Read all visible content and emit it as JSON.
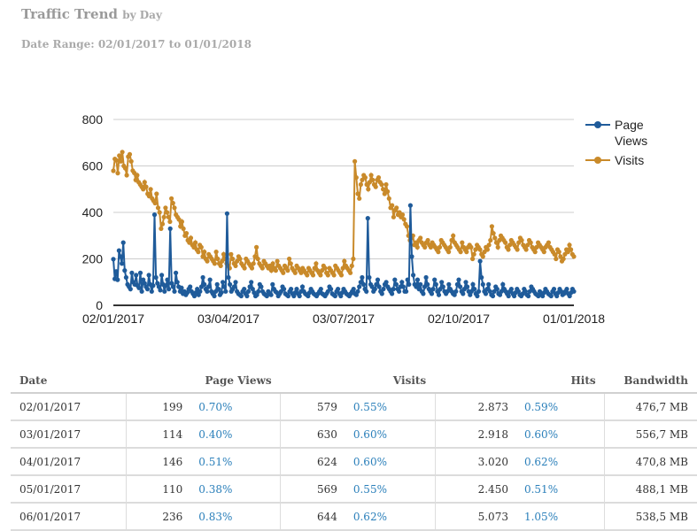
{
  "header": {
    "title": "Traffic Trend",
    "title_suffix": "by Day",
    "date_range": "Date Range: 02/01/2017 to 01/01/2018"
  },
  "chart_data": {
    "type": "line",
    "x_start": "02/01/2017",
    "x_ticks": [
      "02/01/2017",
      "03/04/2017",
      "03/07/2017",
      "02/10/2017",
      "01/01/2018"
    ],
    "ylim": [
      0,
      800
    ],
    "y_ticks": [
      0,
      200,
      400,
      600,
      800
    ],
    "grid": true,
    "legend_position": "right",
    "series": [
      {
        "name": "Page Views",
        "color": "#1f5b9a",
        "values": [
          199,
          114,
          146,
          110,
          236,
          210,
          180,
          270,
          150,
          120,
          90,
          80,
          70,
          140,
          100,
          90,
          130,
          85,
          75,
          140,
          60,
          110,
          95,
          80,
          70,
          130,
          90,
          60,
          85,
          390,
          120,
          95,
          80,
          65,
          130,
          90,
          60,
          85,
          110,
          70,
          330,
          95,
          80,
          60,
          140,
          100,
          80,
          60,
          75,
          50,
          60,
          45,
          55,
          70,
          80,
          60,
          50,
          40,
          55,
          70,
          45,
          60,
          80,
          120,
          90,
          70,
          60,
          80,
          110,
          60,
          50,
          40,
          60,
          90,
          70,
          45,
          55,
          100,
          80,
          60,
          395,
          120,
          90,
          60,
          70,
          80,
          100,
          60,
          50,
          45,
          40,
          60,
          70,
          50,
          40,
          60,
          80,
          100,
          70,
          55,
          40,
          45,
          60,
          90,
          80,
          60,
          50,
          45,
          40,
          60,
          50,
          45,
          90,
          70,
          60,
          55,
          40,
          50,
          60,
          80,
          70,
          50,
          45,
          40,
          60,
          70,
          50,
          40,
          55,
          70,
          50,
          40,
          60,
          80,
          60,
          50,
          45,
          40,
          55,
          70,
          60,
          50,
          45,
          40,
          50,
          60,
          70,
          50,
          45,
          40,
          50,
          60,
          80,
          70,
          50,
          45,
          40,
          60,
          70,
          50,
          40,
          55,
          70,
          60,
          50,
          45,
          40,
          50,
          60,
          70,
          50,
          45,
          60,
          80,
          100,
          120,
          90,
          70,
          60,
          375,
          120,
          90,
          80,
          60,
          70,
          90,
          110,
          80,
          60,
          50,
          70,
          90,
          100,
          80,
          70,
          60,
          50,
          70,
          110,
          90,
          70,
          60,
          80,
          100,
          80,
          60,
          60,
          110,
          90,
          430,
          210,
          130,
          90,
          80,
          110,
          70,
          90,
          60,
          50,
          80,
          120,
          90,
          70,
          60,
          50,
          70,
          110,
          90,
          60,
          45,
          70,
          100,
          80,
          60,
          50,
          60,
          90,
          70,
          60,
          50,
          45,
          60,
          90,
          110,
          80,
          60,
          50,
          70,
          100,
          80,
          60,
          45,
          60,
          90,
          70,
          50,
          40,
          60,
          190,
          120,
          90,
          60,
          50,
          70,
          90,
          60,
          45,
          40,
          60,
          80,
          70,
          50,
          45,
          60,
          90,
          70,
          60,
          50,
          40,
          60,
          70,
          50,
          40,
          55,
          70,
          60,
          45,
          40,
          50,
          70,
          60,
          45,
          40,
          60,
          80,
          70,
          60,
          50,
          45,
          40,
          60,
          50,
          40,
          55,
          70,
          60,
          50,
          45,
          40,
          60,
          70,
          50,
          40,
          55,
          70,
          60,
          45,
          50,
          60,
          70,
          50,
          40,
          55,
          70,
          60
        ]
      },
      {
        "name": "Visits",
        "color": "#c98a2a",
        "values": [
          579,
          630,
          624,
          569,
          644,
          620,
          660,
          600,
          590,
          560,
          640,
          650,
          620,
          580,
          570,
          540,
          560,
          530,
          520,
          510,
          500,
          530,
          510,
          480,
          470,
          500,
          460,
          450,
          440,
          480,
          420,
          400,
          330,
          350,
          380,
          420,
          400,
          380,
          360,
          460,
          440,
          420,
          390,
          380,
          370,
          340,
          360,
          330,
          300,
          310,
          280,
          270,
          290,
          260,
          250,
          270,
          240,
          230,
          260,
          250,
          210,
          230,
          200,
          190,
          220,
          210,
          200,
          190,
          180,
          230,
          200,
          180,
          170,
          190,
          220,
          200,
          180,
          170,
          160,
          220,
          200,
          180,
          170,
          190,
          210,
          200,
          180,
          170,
          160,
          200,
          190,
          180,
          170,
          160,
          180,
          210,
          250,
          200,
          180,
          170,
          160,
          190,
          180,
          170,
          160,
          170,
          150,
          180,
          160,
          150,
          190,
          170,
          160,
          150,
          140,
          170,
          160,
          150,
          200,
          180,
          160,
          150,
          140,
          170,
          160,
          150,
          140,
          160,
          150,
          140,
          130,
          160,
          150,
          140,
          130,
          160,
          180,
          150,
          140,
          130,
          150,
          170,
          160,
          140,
          130,
          160,
          150,
          140,
          130,
          170,
          160,
          150,
          140,
          130,
          160,
          190,
          170,
          160,
          150,
          140,
          170,
          200,
          620,
          550,
          480,
          460,
          520,
          540,
          560,
          550,
          520,
          500,
          530,
          560,
          540,
          520,
          510,
          540,
          550,
          530,
          520,
          500,
          480,
          520,
          490,
          460,
          420,
          430,
          380,
          410,
          420,
          390,
          400,
          380,
          390,
          370,
          350,
          340,
          300,
          280,
          290,
          300,
          260,
          270,
          250,
          280,
          290,
          270,
          260,
          250,
          270,
          280,
          260,
          250,
          270,
          260,
          250,
          240,
          230,
          250,
          280,
          270,
          260,
          250,
          240,
          230,
          250,
          280,
          300,
          270,
          260,
          250,
          240,
          230,
          270,
          250,
          240,
          230,
          250,
          260,
          250,
          200,
          220,
          240,
          260,
          250,
          240,
          220,
          210,
          230,
          250,
          240,
          260,
          280,
          340,
          310,
          290,
          270,
          250,
          280,
          300,
          290,
          280,
          270,
          250,
          240,
          260,
          280,
          270,
          260,
          250,
          240,
          270,
          290,
          280,
          260,
          250,
          240,
          260,
          280,
          270,
          250,
          240,
          230,
          250,
          270,
          260,
          250,
          240,
          230,
          250,
          260,
          270,
          250,
          240,
          230,
          220,
          200,
          240,
          230,
          210,
          190,
          200,
          220,
          240,
          230,
          260,
          240,
          220,
          210
        ]
      }
    ]
  },
  "table": {
    "headers": [
      "Date",
      "Page Views",
      "Visits",
      "Hits",
      "Bandwidth"
    ],
    "rows": [
      {
        "date": "02/01/2017",
        "pv": "199",
        "pv_pct": "0.70%",
        "visits": "579",
        "visits_pct": "0.55%",
        "hits": "2.873",
        "hits_pct": "0.59%",
        "bw": "476,7 MB"
      },
      {
        "date": "03/01/2017",
        "pv": "114",
        "pv_pct": "0.40%",
        "visits": "630",
        "visits_pct": "0.60%",
        "hits": "2.918",
        "hits_pct": "0.60%",
        "bw": "556,7 MB"
      },
      {
        "date": "04/01/2017",
        "pv": "146",
        "pv_pct": "0.51%",
        "visits": "624",
        "visits_pct": "0.60%",
        "hits": "3.020",
        "hits_pct": "0.62%",
        "bw": "470,8 MB"
      },
      {
        "date": "05/01/2017",
        "pv": "110",
        "pv_pct": "0.38%",
        "visits": "569",
        "visits_pct": "0.55%",
        "hits": "2.450",
        "hits_pct": "0.51%",
        "bw": "488,1 MB"
      },
      {
        "date": "06/01/2017",
        "pv": "236",
        "pv_pct": "0.83%",
        "visits": "644",
        "visits_pct": "0.62%",
        "hits": "5.073",
        "hits_pct": "1.05%",
        "bw": "538,5 MB"
      }
    ]
  }
}
